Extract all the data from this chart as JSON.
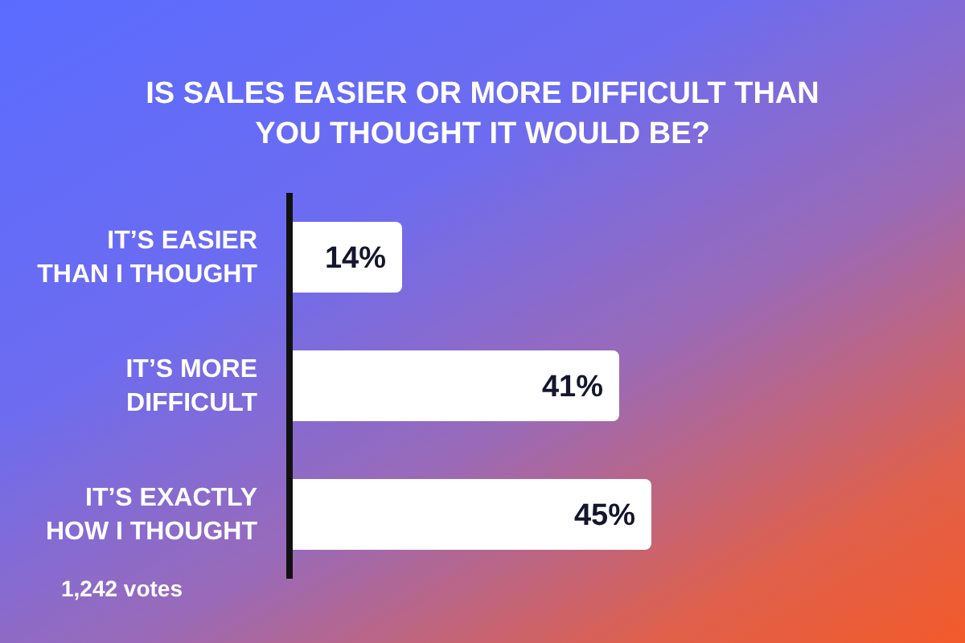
{
  "chart_data": {
    "type": "bar",
    "orientation": "horizontal",
    "title": "IS SALES EASIER OR MORE DIFFICULT THAN YOU THOUGHT IT WOULD BE?",
    "categories": [
      "IT’S EASIER THAN I THOUGHT",
      "IT’S MORE DIFFICULT",
      "IT’S EXACTLY HOW I THOUGHT"
    ],
    "values": [
      14,
      41,
      45
    ],
    "value_labels": [
      "14%",
      "41%",
      "45%"
    ],
    "color": "#ffffff",
    "annotations": [
      "1,242 votes"
    ]
  }
}
